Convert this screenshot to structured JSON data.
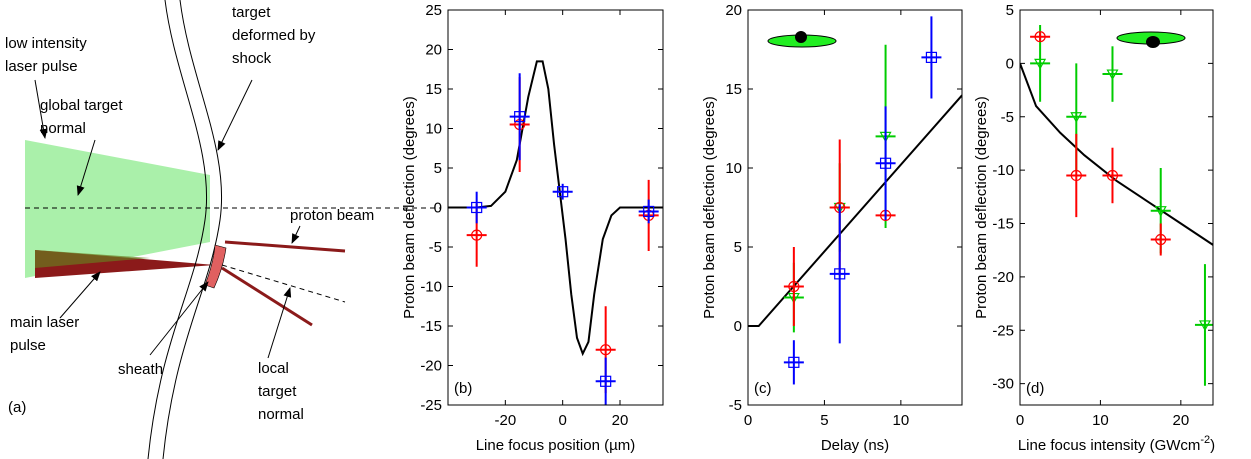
{
  "diagram": {
    "label": "(a)",
    "texts": [
      [
        "low intensity",
        "laser pulse"
      ],
      [
        "global target",
        "normal"
      ],
      [
        "target",
        "deformed by",
        "shock"
      ],
      [
        "proton beam"
      ],
      [
        "main laser",
        "pulse"
      ],
      [
        "sheath"
      ],
      [
        "local",
        "target",
        "normal"
      ]
    ]
  },
  "chart_data": [
    {
      "type": "scatter",
      "label": "(b)",
      "ylabel": "Proton beam deflection (degrees)",
      "xlabel": [
        "Line focus position (",
        "µ",
        "m)"
      ],
      "xlim": [
        -40,
        35
      ],
      "ylim": [
        -25,
        25
      ],
      "xticks": [
        -20,
        0,
        20
      ],
      "yticks": [
        -25,
        -20,
        -15,
        -10,
        -5,
        0,
        5,
        10,
        15,
        20,
        25
      ],
      "series": [
        {
          "kind": "line",
          "color": "#000000",
          "x": [
            -40,
            -30,
            -25,
            -20,
            -16,
            -12,
            -9,
            -7,
            -5,
            -3,
            -1,
            1,
            3,
            5,
            7,
            9,
            11,
            14,
            17,
            20,
            25,
            35
          ],
          "values": [
            0,
            0,
            0.2,
            2,
            6,
            14,
            18.5,
            18.5,
            15,
            8,
            2,
            -4,
            -11,
            -16.5,
            -18.5,
            -17,
            -11,
            -4,
            -1,
            0,
            0,
            0
          ]
        },
        {
          "kind": "errorbar",
          "marker": "circle",
          "color": "#ff0000",
          "x": [
            -30,
            -15,
            15,
            30
          ],
          "values": [
            -3.5,
            10.5,
            -18,
            -1
          ],
          "errors": [
            4,
            6,
            5.5,
            4.5
          ]
        },
        {
          "kind": "errorbar",
          "marker": "square",
          "color": "#0000ff",
          "x": [
            -30,
            -15,
            0,
            15,
            30
          ],
          "values": [
            0,
            11.5,
            2,
            -22,
            -0.5
          ],
          "errors": [
            2,
            5.5,
            1,
            3,
            1.5
          ]
        }
      ]
    },
    {
      "type": "scatter",
      "label": "(c)",
      "ylabel": "Proton beam deflection (degrees)",
      "xlabel": [
        "Delay (ns)"
      ],
      "xlim": [
        0,
        14
      ],
      "ylim": [
        -5,
        20
      ],
      "xticks": [
        0,
        5,
        10
      ],
      "yticks": [
        -5,
        0,
        5,
        10,
        15,
        20
      ],
      "series": [
        {
          "kind": "line",
          "color": "#000000",
          "x": [
            0,
            0.7,
            14
          ],
          "values": [
            0,
            0,
            14.6
          ]
        },
        {
          "kind": "errorbar",
          "marker": "triangle",
          "color": "#00cc00",
          "x": [
            3,
            6,
            9
          ],
          "values": [
            1.8,
            7.5,
            12
          ],
          "errors": [
            2.2,
            2.8,
            5.8
          ]
        },
        {
          "kind": "errorbar",
          "marker": "circle",
          "color": "#ff0000",
          "x": [
            3,
            6,
            9
          ],
          "values": [
            2.5,
            7.5,
            7
          ],
          "errors": [
            2.5,
            4.3,
            0.3
          ]
        },
        {
          "kind": "errorbar",
          "marker": "square",
          "color": "#0000ff",
          "x": [
            3,
            6,
            9,
            12
          ],
          "values": [
            -2.3,
            3.3,
            10.3,
            17
          ],
          "errors": [
            1.4,
            4.4,
            3.6,
            2.6
          ]
        }
      ]
    },
    {
      "type": "scatter",
      "label": "(d)",
      "ylabel": "Proton beam deflection (degrees)",
      "xlabel": [
        "Line focus intensity (GWcm",
        "-2",
        ")"
      ],
      "xlim": [
        0,
        24
      ],
      "ylim": [
        -32,
        5
      ],
      "xticks": [
        0,
        10,
        20
      ],
      "yticks": [
        -30,
        -25,
        -20,
        -15,
        -10,
        -5,
        0,
        5
      ],
      "series": [
        {
          "kind": "line",
          "color": "#000000",
          "x": [
            0,
            2,
            5,
            8,
            12,
            16,
            20,
            24
          ],
          "values": [
            0,
            -4,
            -6.5,
            -8.6,
            -11,
            -13,
            -15,
            -17
          ]
        },
        {
          "kind": "errorbar",
          "marker": "triangle",
          "color": "#00cc00",
          "x": [
            2.5,
            7,
            11.5,
            17.5,
            23
          ],
          "values": [
            0,
            -5,
            -1,
            -13.8,
            -24.5
          ],
          "errors": [
            3.6,
            5,
            2.6,
            4,
            5.7
          ]
        },
        {
          "kind": "errorbar",
          "marker": "circle",
          "color": "#ff0000",
          "x": [
            2.5,
            7,
            11.5,
            17.5
          ],
          "values": [
            2.5,
            -10.5,
            -10.5,
            -16.5
          ],
          "errors": [
            0.4,
            3.9,
            2.6,
            1.5
          ]
        }
      ]
    }
  ]
}
